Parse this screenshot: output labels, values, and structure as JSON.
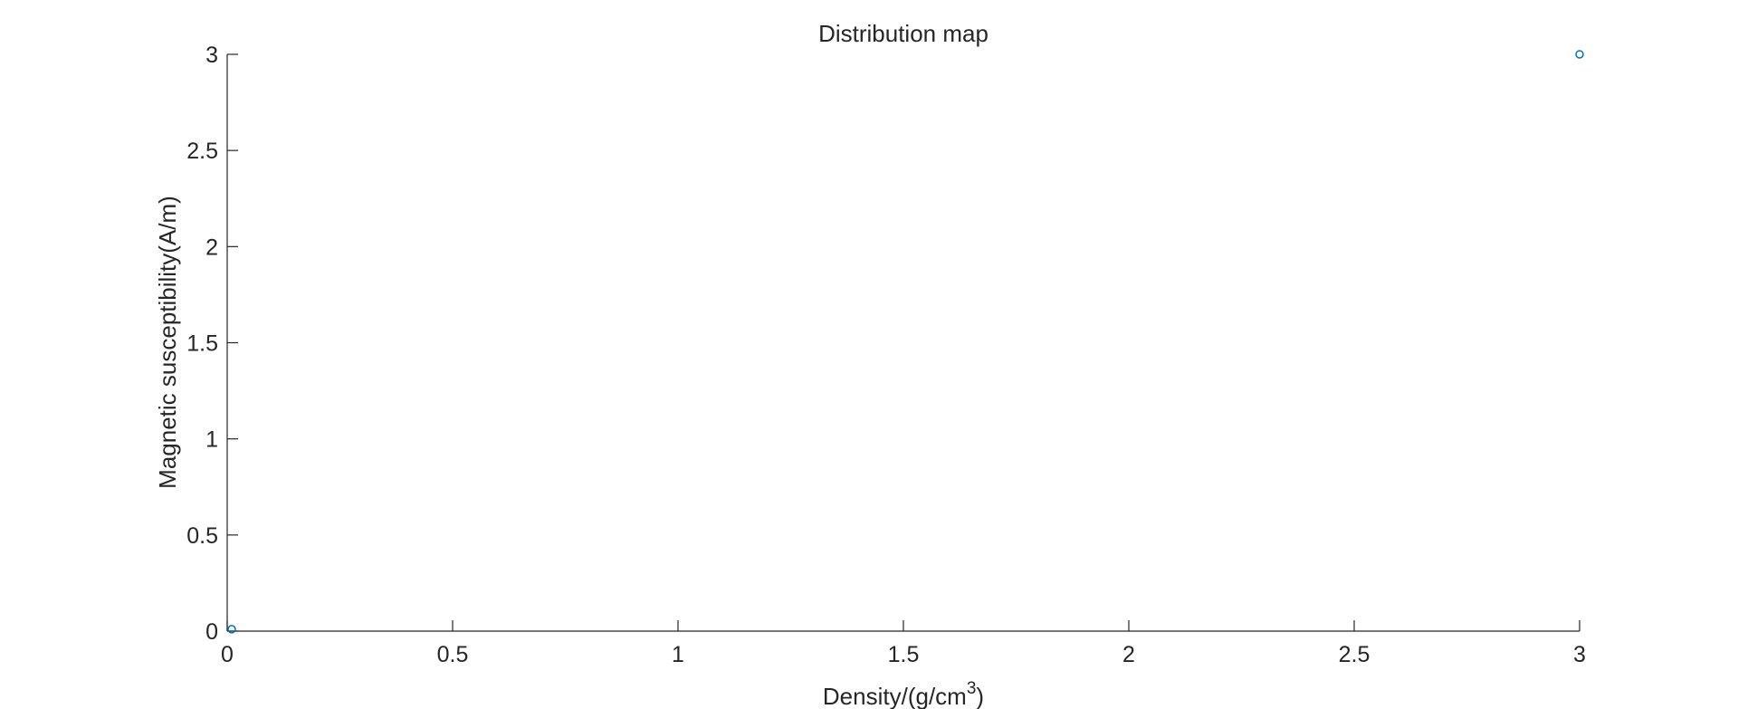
{
  "chart_data": {
    "type": "scatter",
    "title": "Distribution map",
    "xlabel": "Density/(g/cm",
    "xlabel_superscript": "3",
    "xlabel_suffix": ")",
    "ylabel": "Magnetic susceptibility(A/m)",
    "xlim": [
      0,
      3
    ],
    "ylim": [
      0,
      3
    ],
    "xticks": [
      "0",
      "0.5",
      "1",
      "1.5",
      "2",
      "2.5",
      "3"
    ],
    "yticks": [
      "0",
      "0.5",
      "1",
      "1.5",
      "2",
      "2.5",
      "3"
    ],
    "grid": false,
    "marker": "circle-open",
    "color": "#0072BD",
    "series": [
      {
        "x": [
          0.01,
          3.0
        ],
        "y": [
          0.01,
          3.0
        ]
      }
    ]
  }
}
